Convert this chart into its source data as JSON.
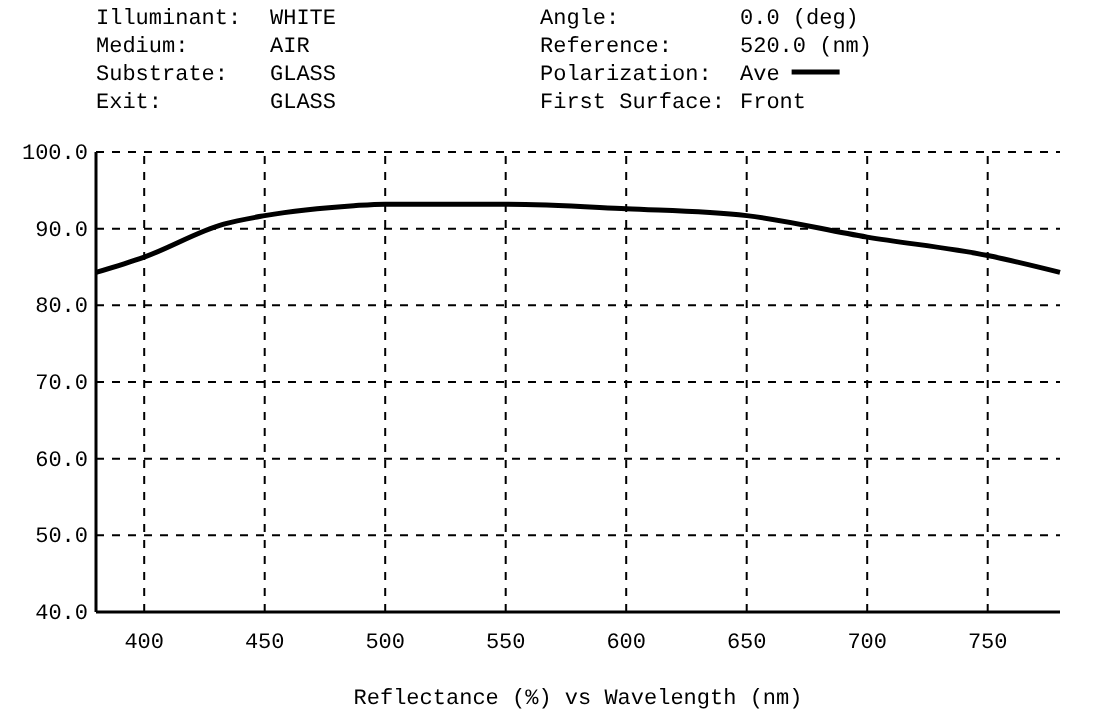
{
  "chart_data": {
    "type": "line",
    "xlabel": "Reflectance (%)  vs  Wavelength (nm)",
    "annotations": [
      "Illuminant:",
      "WHITE",
      "Medium:",
      "AIR",
      "Substrate:",
      "GLASS",
      "Exit:",
      "GLASS",
      "Angle:",
      "0.0 (deg)",
      "Reference:",
      "520.0 (nm)",
      "Polarization:",
      "First Surface:",
      "Front"
    ],
    "x": [
      380,
      400,
      433,
      450,
      487,
      500,
      550,
      600,
      650,
      700,
      750,
      780
    ],
    "series": [
      {
        "name": "Ave",
        "color": "#000000",
        "values": [
          84.3,
          86.3,
          90.6,
          91.7,
          93.0,
          93.2,
          93.2,
          92.6,
          91.7,
          88.9,
          86.5,
          84.3
        ]
      }
    ],
    "xlim": [
      380,
      780
    ],
    "xticks": [
      400,
      450,
      500,
      550,
      600,
      650,
      700,
      750
    ],
    "ylim": [
      40,
      100
    ],
    "yticks": [
      {
        "value": 40,
        "label": "40.0"
      },
      {
        "value": 50,
        "label": "50.0"
      },
      {
        "value": 60,
        "label": "60.0"
      },
      {
        "value": 70,
        "label": "70.0"
      },
      {
        "value": 80,
        "label": "80.0"
      },
      {
        "value": 90,
        "label": "90.0"
      },
      {
        "value": 100,
        "label": "100.0"
      }
    ],
    "grid": true,
    "legend": "top",
    "marker": "none",
    "line_style": "solid"
  }
}
